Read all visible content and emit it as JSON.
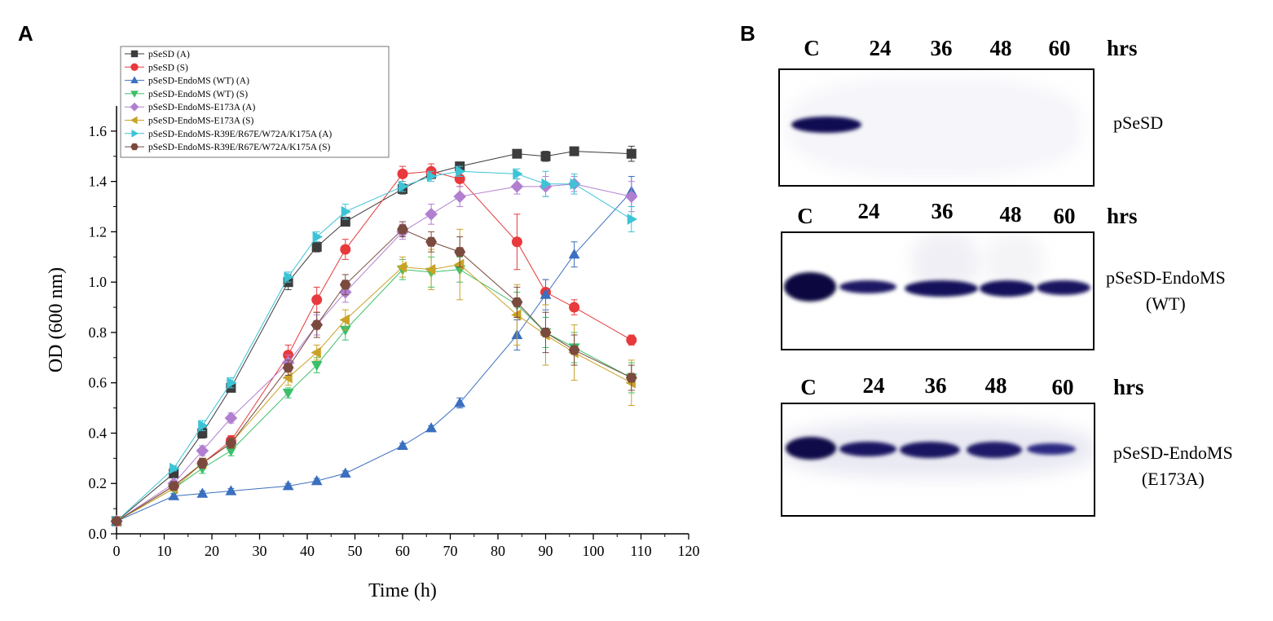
{
  "panels": {
    "a": "A",
    "b": "B"
  },
  "chart_data": {
    "type": "line",
    "title": "",
    "xlabel": "Time (h)",
    "ylabel": "OD (600 nm)",
    "xlim": [
      0,
      120
    ],
    "ylim": [
      0,
      1.7
    ],
    "xticks": [
      0,
      10,
      20,
      30,
      40,
      50,
      60,
      70,
      80,
      90,
      100,
      110,
      120
    ],
    "yticks": [
      0.0,
      0.2,
      0.4,
      0.6,
      0.8,
      1.0,
      1.2,
      1.4,
      1.6
    ],
    "legend_position": "top-left",
    "x": [
      0,
      12,
      18,
      24,
      36,
      42,
      48,
      60,
      66,
      72,
      84,
      90,
      96,
      108
    ],
    "series": [
      {
        "name": "pSeSD (A)",
        "color": "#3c3c3c",
        "marker": "square",
        "values": [
          0.05,
          0.24,
          0.4,
          0.58,
          1.0,
          1.14,
          1.24,
          1.37,
          1.43,
          1.46,
          1.51,
          1.5,
          1.52,
          1.51
        ],
        "errors": [
          0.01,
          0.01,
          0.02,
          0.01,
          0.03,
          0.02,
          0.01,
          0.02,
          0.02,
          0.01,
          0.01,
          0.02,
          0.01,
          0.03
        ]
      },
      {
        "name": "pSeSD (S)",
        "color": "#e8393c",
        "marker": "circle",
        "values": [
          0.05,
          0.19,
          0.28,
          0.37,
          0.71,
          0.93,
          1.13,
          1.43,
          1.44,
          1.41,
          1.16,
          0.96,
          0.9,
          0.77
        ],
        "errors": [
          0.01,
          0.01,
          0.02,
          0.02,
          0.04,
          0.05,
          0.04,
          0.03,
          0.03,
          0.03,
          0.11,
          0.05,
          0.03,
          0.02
        ]
      },
      {
        "name": "pSeSD-EndoMS (WT) (A)",
        "color": "#3b6fbf",
        "marker": "triangle-up",
        "values": [
          0.05,
          0.15,
          0.16,
          0.17,
          0.19,
          0.21,
          0.24,
          0.35,
          0.42,
          0.52,
          0.79,
          0.95,
          1.11,
          1.36
        ],
        "errors": [
          0.01,
          0.01,
          0.01,
          0.01,
          0.01,
          0.01,
          0.01,
          0.01,
          0.01,
          0.02,
          0.06,
          0.06,
          0.05,
          0.06
        ]
      },
      {
        "name": "pSeSD-EndoMS (WT) (S)",
        "color": "#3bbf6a",
        "marker": "triangle-down",
        "values": [
          0.05,
          0.18,
          0.26,
          0.33,
          0.56,
          0.67,
          0.81,
          1.05,
          1.04,
          1.05,
          0.91,
          0.8,
          0.74,
          0.62
        ],
        "errors": [
          0.01,
          0.01,
          0.02,
          0.02,
          0.02,
          0.03,
          0.04,
          0.04,
          0.06,
          0.05,
          0.05,
          0.06,
          0.06,
          0.06
        ]
      },
      {
        "name": "pSeSD-EndoMS-E173A (A)",
        "color": "#b17fd0",
        "marker": "diamond",
        "values": [
          0.05,
          0.2,
          0.33,
          0.46,
          0.68,
          0.83,
          0.96,
          1.2,
          1.27,
          1.34,
          1.38,
          1.38,
          1.39,
          1.34
        ],
        "errors": [
          0.01,
          0.01,
          0.02,
          0.02,
          0.03,
          0.04,
          0.04,
          0.03,
          0.04,
          0.04,
          0.03,
          0.04,
          0.03,
          0.06
        ]
      },
      {
        "name": "pSeSD-EndoMS-E173A (S)",
        "color": "#c9a227",
        "marker": "triangle-left",
        "values": [
          0.05,
          0.18,
          0.28,
          0.36,
          0.62,
          0.72,
          0.85,
          1.06,
          1.05,
          1.07,
          0.87,
          0.79,
          0.72,
          0.6
        ],
        "errors": [
          0.01,
          0.01,
          0.02,
          0.02,
          0.03,
          0.03,
          0.04,
          0.04,
          0.08,
          0.14,
          0.12,
          0.12,
          0.11,
          0.09
        ]
      },
      {
        "name": "pSeSD-EndoMS-R39E/R67E/W72A/K175A (A)",
        "color": "#3cc4d6",
        "marker": "triangle-right",
        "values": [
          0.05,
          0.26,
          0.43,
          0.6,
          1.02,
          1.18,
          1.28,
          1.38,
          1.42,
          1.44,
          1.43,
          1.39,
          1.39,
          1.25
        ],
        "errors": [
          0.01,
          0.01,
          0.02,
          0.02,
          0.02,
          0.02,
          0.03,
          0.02,
          0.02,
          0.02,
          0.02,
          0.05,
          0.04,
          0.05
        ]
      },
      {
        "name": "pSeSD-EndoMS-R39E/R67E/W72A/K175A (S)",
        "color": "#7b4a3f",
        "marker": "hexagon",
        "values": [
          0.05,
          0.19,
          0.28,
          0.36,
          0.66,
          0.83,
          0.99,
          1.21,
          1.16,
          1.12,
          0.92,
          0.8,
          0.73,
          0.62
        ],
        "errors": [
          0.01,
          0.01,
          0.02,
          0.02,
          0.03,
          0.05,
          0.04,
          0.03,
          0.04,
          0.06,
          0.06,
          0.08,
          0.06,
          0.05
        ]
      }
    ]
  },
  "blots": [
    {
      "lanes": [
        "C",
        "24",
        "36",
        "48",
        "60"
      ],
      "hrs": "hrs",
      "name_lines": [
        "pSeSD"
      ],
      "bands": [
        1,
        0,
        0,
        0,
        0
      ]
    },
    {
      "lanes": [
        "C",
        "24",
        "36",
        "48",
        "60"
      ],
      "hrs": "hrs",
      "name_lines": [
        "pSeSD-EndoMS",
        "(WT)"
      ],
      "bands": [
        1,
        0.75,
        0.85,
        0.85,
        0.82
      ]
    },
    {
      "lanes": [
        "C",
        "24",
        "36",
        "48",
        "60"
      ],
      "hrs": "hrs",
      "name_lines": [
        "pSeSD-EndoMS",
        "(E173A)"
      ],
      "bands": [
        1,
        0.85,
        0.85,
        0.8,
        0.65
      ]
    }
  ]
}
